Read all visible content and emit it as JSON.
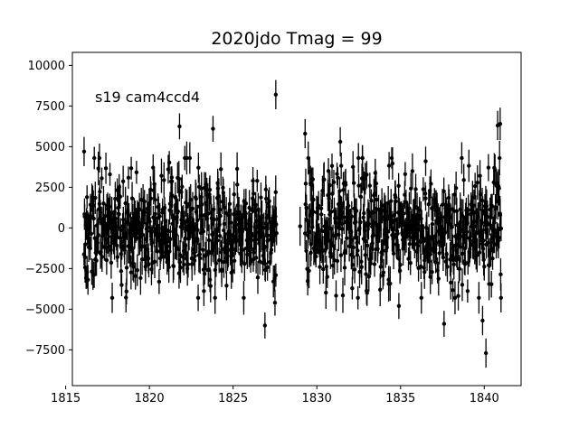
{
  "chart_data": {
    "type": "scatter",
    "title": "2020jdo Tmag = 99",
    "annotation": "s19 cam4ccd4",
    "xlabel": "",
    "ylabel": "",
    "xlim": [
      1815.4,
      1842.2
    ],
    "ylim": [
      -9700,
      10800
    ],
    "xticks": [
      1815,
      1820,
      1825,
      1830,
      1835,
      1840
    ],
    "yticks": [
      -7500,
      -5000,
      -2500,
      0,
      2500,
      5000,
      7500,
      10000
    ],
    "xtick_labels": [
      "1815",
      "1820",
      "1825",
      "1830",
      "1835",
      "1840"
    ],
    "ytick_labels": [
      "−7500",
      "−5000",
      "−2500",
      "0",
      "2500",
      "5000",
      "7500",
      "10000"
    ],
    "marker_color": "#000000",
    "grid": false,
    "segments": [
      {
        "x_start": 1816.1,
        "x_end": 1827.6,
        "n": 560,
        "scatter": 1700,
        "seed": 11
      },
      {
        "x_start": 1829.3,
        "x_end": 1841.0,
        "n": 560,
        "scatter": 1700,
        "seed": 29
      }
    ],
    "highlighted_points": [
      {
        "x": 1827.55,
        "y": 8200,
        "err": 900
      },
      {
        "x": 1823.8,
        "y": 6100,
        "err": 800
      },
      {
        "x": 1821.8,
        "y": 6250,
        "err": 800
      },
      {
        "x": 1816.1,
        "y": 4700,
        "err": 900
      },
      {
        "x": 1816.15,
        "y": -1800,
        "err": 900
      },
      {
        "x": 1826.9,
        "y": -6000,
        "err": 800
      },
      {
        "x": 1827.5,
        "y": -4600,
        "err": 800
      },
      {
        "x": 1829.0,
        "y": 100,
        "err": 1200
      },
      {
        "x": 1829.3,
        "y": 5800,
        "err": 900
      },
      {
        "x": 1833.0,
        "y": -4000,
        "err": 800
      },
      {
        "x": 1834.9,
        "y": -4800,
        "err": 800
      },
      {
        "x": 1837.6,
        "y": -5900,
        "err": 800
      },
      {
        "x": 1839.9,
        "y": -5700,
        "err": 900
      },
      {
        "x": 1840.1,
        "y": -7700,
        "err": 900
      },
      {
        "x": 1840.8,
        "y": 6300,
        "err": 900
      },
      {
        "x": 1840.95,
        "y": 6400,
        "err": 1000
      },
      {
        "x": 1841.0,
        "y": -4300,
        "err": 900
      },
      {
        "x": 1840.6,
        "y": 3700,
        "err": 900
      },
      {
        "x": 1831.4,
        "y": 5300,
        "err": 900
      },
      {
        "x": 1836.5,
        "y": 4100,
        "err": 900
      }
    ]
  }
}
